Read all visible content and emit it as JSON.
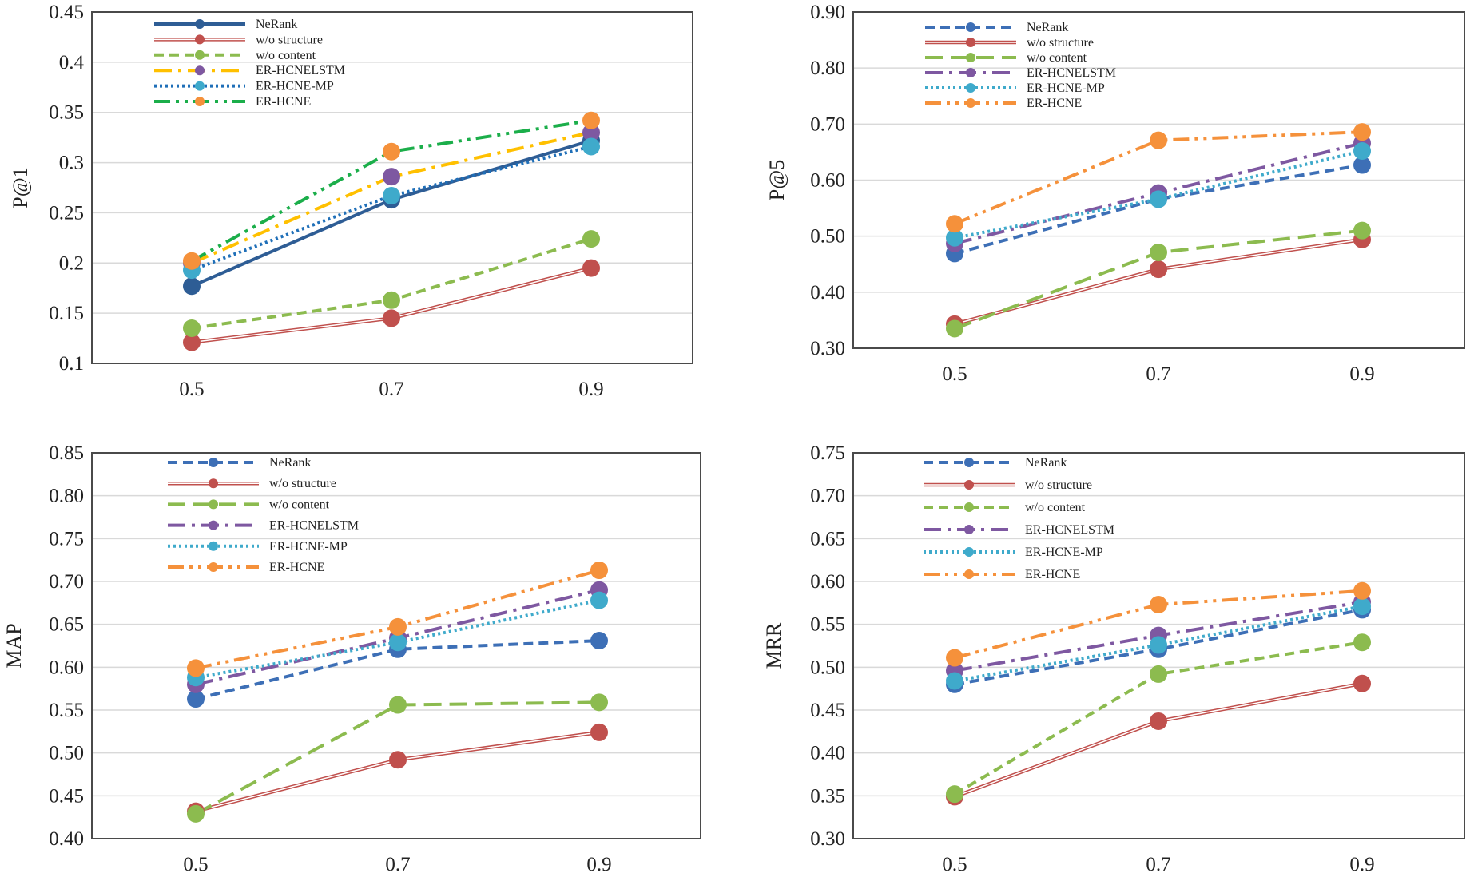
{
  "colors": {
    "NeRank_top_left": "#2E5D95",
    "NeRank": "#3D6FB6",
    "wo_structure": "#C0504D",
    "wo_content": "#8CBB4F",
    "ER-HCNELSTM_top_left": "#FFC000",
    "ER-HCNELSTM": "#7E58A1",
    "ER-HCNE-MP_top_left": "#1F6FB8",
    "ER-HCNE-MP": "#3FAACB",
    "ER-HCNE_top_left": "#1BAE4A",
    "ER-HCNE": "#F5913B"
  },
  "chart_data": [
    {
      "type": "line",
      "ylabel": "P@1",
      "categories": [
        "0.5",
        "0.7",
        "0.9"
      ],
      "ylim": [
        0.1,
        0.45
      ],
      "yticks": [
        "0.1",
        "0.15",
        "0.2",
        "0.25",
        "0.3",
        "0.35",
        "0.4",
        "0.45"
      ],
      "grid": true,
      "legend": "top-left",
      "series": [
        {
          "name": "NeRank",
          "values": [
            0.177,
            0.263,
            0.322
          ],
          "color": "#2E5D95",
          "dash": "solid",
          "double": false
        },
        {
          "name": "w/o structure",
          "values": [
            0.121,
            0.145,
            0.195
          ],
          "color": "#C0504D",
          "dash": "solid",
          "double": true
        },
        {
          "name": "w/o content",
          "values": [
            0.135,
            0.163,
            0.224
          ],
          "color": "#8CBB4F",
          "dash": "dash",
          "double": false
        },
        {
          "name": "ER-HCNELSTM",
          "values": [
            0.2,
            0.286,
            0.33
          ],
          "color": "#FFC000",
          "dash": "dashdot",
          "marker_color": "#7E58A1",
          "double": false
        },
        {
          "name": "ER-HCNE-MP",
          "values": [
            0.193,
            0.267,
            0.316
          ],
          "color": "#1F6FB8",
          "dash": "dot",
          "marker_color": "#3FAACB",
          "double": false
        },
        {
          "name": "ER-HCNE",
          "values": [
            0.202,
            0.311,
            0.342
          ],
          "color": "#1BAE4A",
          "dash": "dashdotdot",
          "marker_color": "#F5913B",
          "double": false
        }
      ]
    },
    {
      "type": "line",
      "ylabel": "P@5",
      "categories": [
        "0.5",
        "0.7",
        "0.9"
      ],
      "ylim": [
        0.3,
        0.9
      ],
      "yticks": [
        "0.30",
        "0.40",
        "0.50",
        "0.60",
        "0.70",
        "0.80",
        "0.90"
      ],
      "grid": true,
      "legend": "top-left",
      "series": [
        {
          "name": "NeRank",
          "values": [
            0.469,
            0.566,
            0.627
          ],
          "color": "#3D6FB6",
          "dash": "dash",
          "double": false
        },
        {
          "name": "w/o structure",
          "values": [
            0.343,
            0.441,
            0.494
          ],
          "color": "#C0504D",
          "dash": "solid",
          "double": true
        },
        {
          "name": "w/o content",
          "values": [
            0.335,
            0.471,
            0.51
          ],
          "color": "#8CBB4F",
          "dash": "longdash",
          "double": false
        },
        {
          "name": "ER-HCNELSTM",
          "values": [
            0.487,
            0.577,
            0.666
          ],
          "color": "#7E58A1",
          "dash": "dashdot",
          "double": false
        },
        {
          "name": "ER-HCNE-MP",
          "values": [
            0.497,
            0.566,
            0.652
          ],
          "color": "#3FAACB",
          "dash": "dot",
          "double": false
        },
        {
          "name": "ER-HCNE",
          "values": [
            0.522,
            0.671,
            0.686
          ],
          "color": "#F5913B",
          "dash": "dashdotdot",
          "double": false
        }
      ]
    },
    {
      "type": "line",
      "ylabel": "MAP",
      "categories": [
        "0.5",
        "0.7",
        "0.9"
      ],
      "ylim": [
        0.4,
        0.85
      ],
      "yticks": [
        "0.40",
        "0.45",
        "0.50",
        "0.55",
        "0.60",
        "0.65",
        "0.70",
        "0.75",
        "0.80",
        "0.85"
      ],
      "grid": true,
      "legend": "top-left",
      "series": [
        {
          "name": "NeRank",
          "values": [
            0.563,
            0.621,
            0.631
          ],
          "color": "#3D6FB6",
          "dash": "dash",
          "double": false
        },
        {
          "name": "w/o structure",
          "values": [
            0.432,
            0.492,
            0.524
          ],
          "color": "#C0504D",
          "dash": "solid",
          "double": true
        },
        {
          "name": "w/o content",
          "values": [
            0.429,
            0.556,
            0.559
          ],
          "color": "#8CBB4F",
          "dash": "longdash",
          "double": false
        },
        {
          "name": "ER-HCNELSTM",
          "values": [
            0.58,
            0.634,
            0.69
          ],
          "color": "#7E58A1",
          "dash": "dashdot",
          "double": false
        },
        {
          "name": "ER-HCNE-MP",
          "values": [
            0.588,
            0.629,
            0.678
          ],
          "color": "#3FAACB",
          "dash": "dot",
          "double": false
        },
        {
          "name": "ER-HCNE",
          "values": [
            0.599,
            0.647,
            0.713
          ],
          "color": "#F5913B",
          "dash": "dashdotdot",
          "double": false
        }
      ]
    },
    {
      "type": "line",
      "ylabel": "MRR",
      "categories": [
        "0.5",
        "0.7",
        "0.9"
      ],
      "ylim": [
        0.3,
        0.75
      ],
      "yticks": [
        "0.30",
        "0.35",
        "0.40",
        "0.45",
        "0.50",
        "0.55",
        "0.60",
        "0.65",
        "0.70",
        "0.75"
      ],
      "grid": true,
      "legend": "top-left",
      "series": [
        {
          "name": "NeRank",
          "values": [
            0.48,
            0.521,
            0.567
          ],
          "color": "#3D6FB6",
          "dash": "dash",
          "double": false
        },
        {
          "name": "w/o structure",
          "values": [
            0.349,
            0.437,
            0.481
          ],
          "color": "#C0504D",
          "dash": "solid",
          "double": true
        },
        {
          "name": "w/o content",
          "values": [
            0.352,
            0.492,
            0.529
          ],
          "color": "#8CBB4F",
          "dash": "dash",
          "double": false
        },
        {
          "name": "ER-HCNELSTM",
          "values": [
            0.496,
            0.537,
            0.576
          ],
          "color": "#7E58A1",
          "dash": "dashdot",
          "double": false
        },
        {
          "name": "ER-HCNE-MP",
          "values": [
            0.484,
            0.526,
            0.571
          ],
          "color": "#3FAACB",
          "dash": "dot",
          "double": false
        },
        {
          "name": "ER-HCNE",
          "values": [
            0.511,
            0.573,
            0.589
          ],
          "color": "#F5913B",
          "dash": "dashdotdot",
          "double": false
        }
      ]
    }
  ]
}
